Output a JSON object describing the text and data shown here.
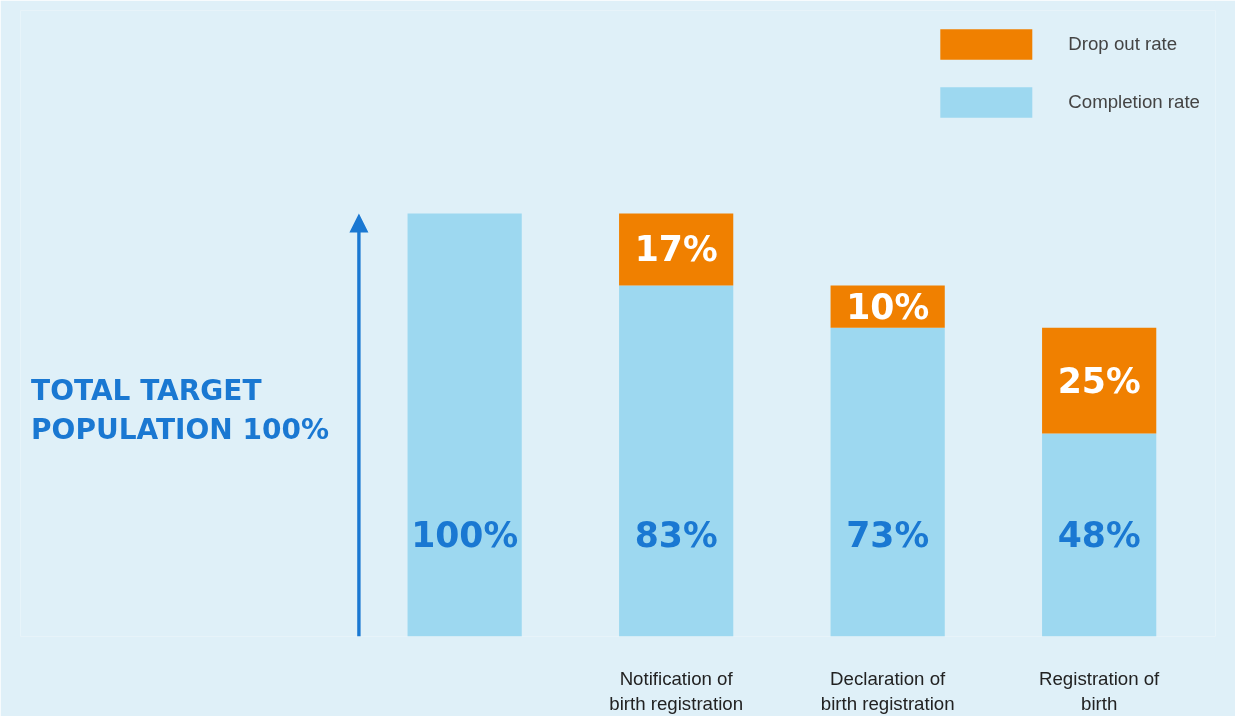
{
  "chart_data": {
    "type": "bar",
    "stacked": true,
    "legend": "top right",
    "tick_labels": "x",
    "categories": [
      null,
      "Notification of birth registration",
      "Declaration of birth registration",
      "Registration of birth"
    ],
    "series": [
      {
        "name": "Completion rate",
        "color": "#9dd8f0",
        "values": [
          100,
          83,
          73,
          48
        ],
        "value_labels": [
          "100%",
          "83%",
          "73%",
          "48%"
        ]
      },
      {
        "name": "Drop out rate",
        "color": "#f08000",
        "values": [
          null,
          17,
          10,
          25
        ],
        "value_labels": [
          null,
          "17%",
          "10%",
          "25%"
        ]
      }
    ],
    "annotations": [
      "TOTAL TARGET POPULATION 100%"
    ]
  }
}
